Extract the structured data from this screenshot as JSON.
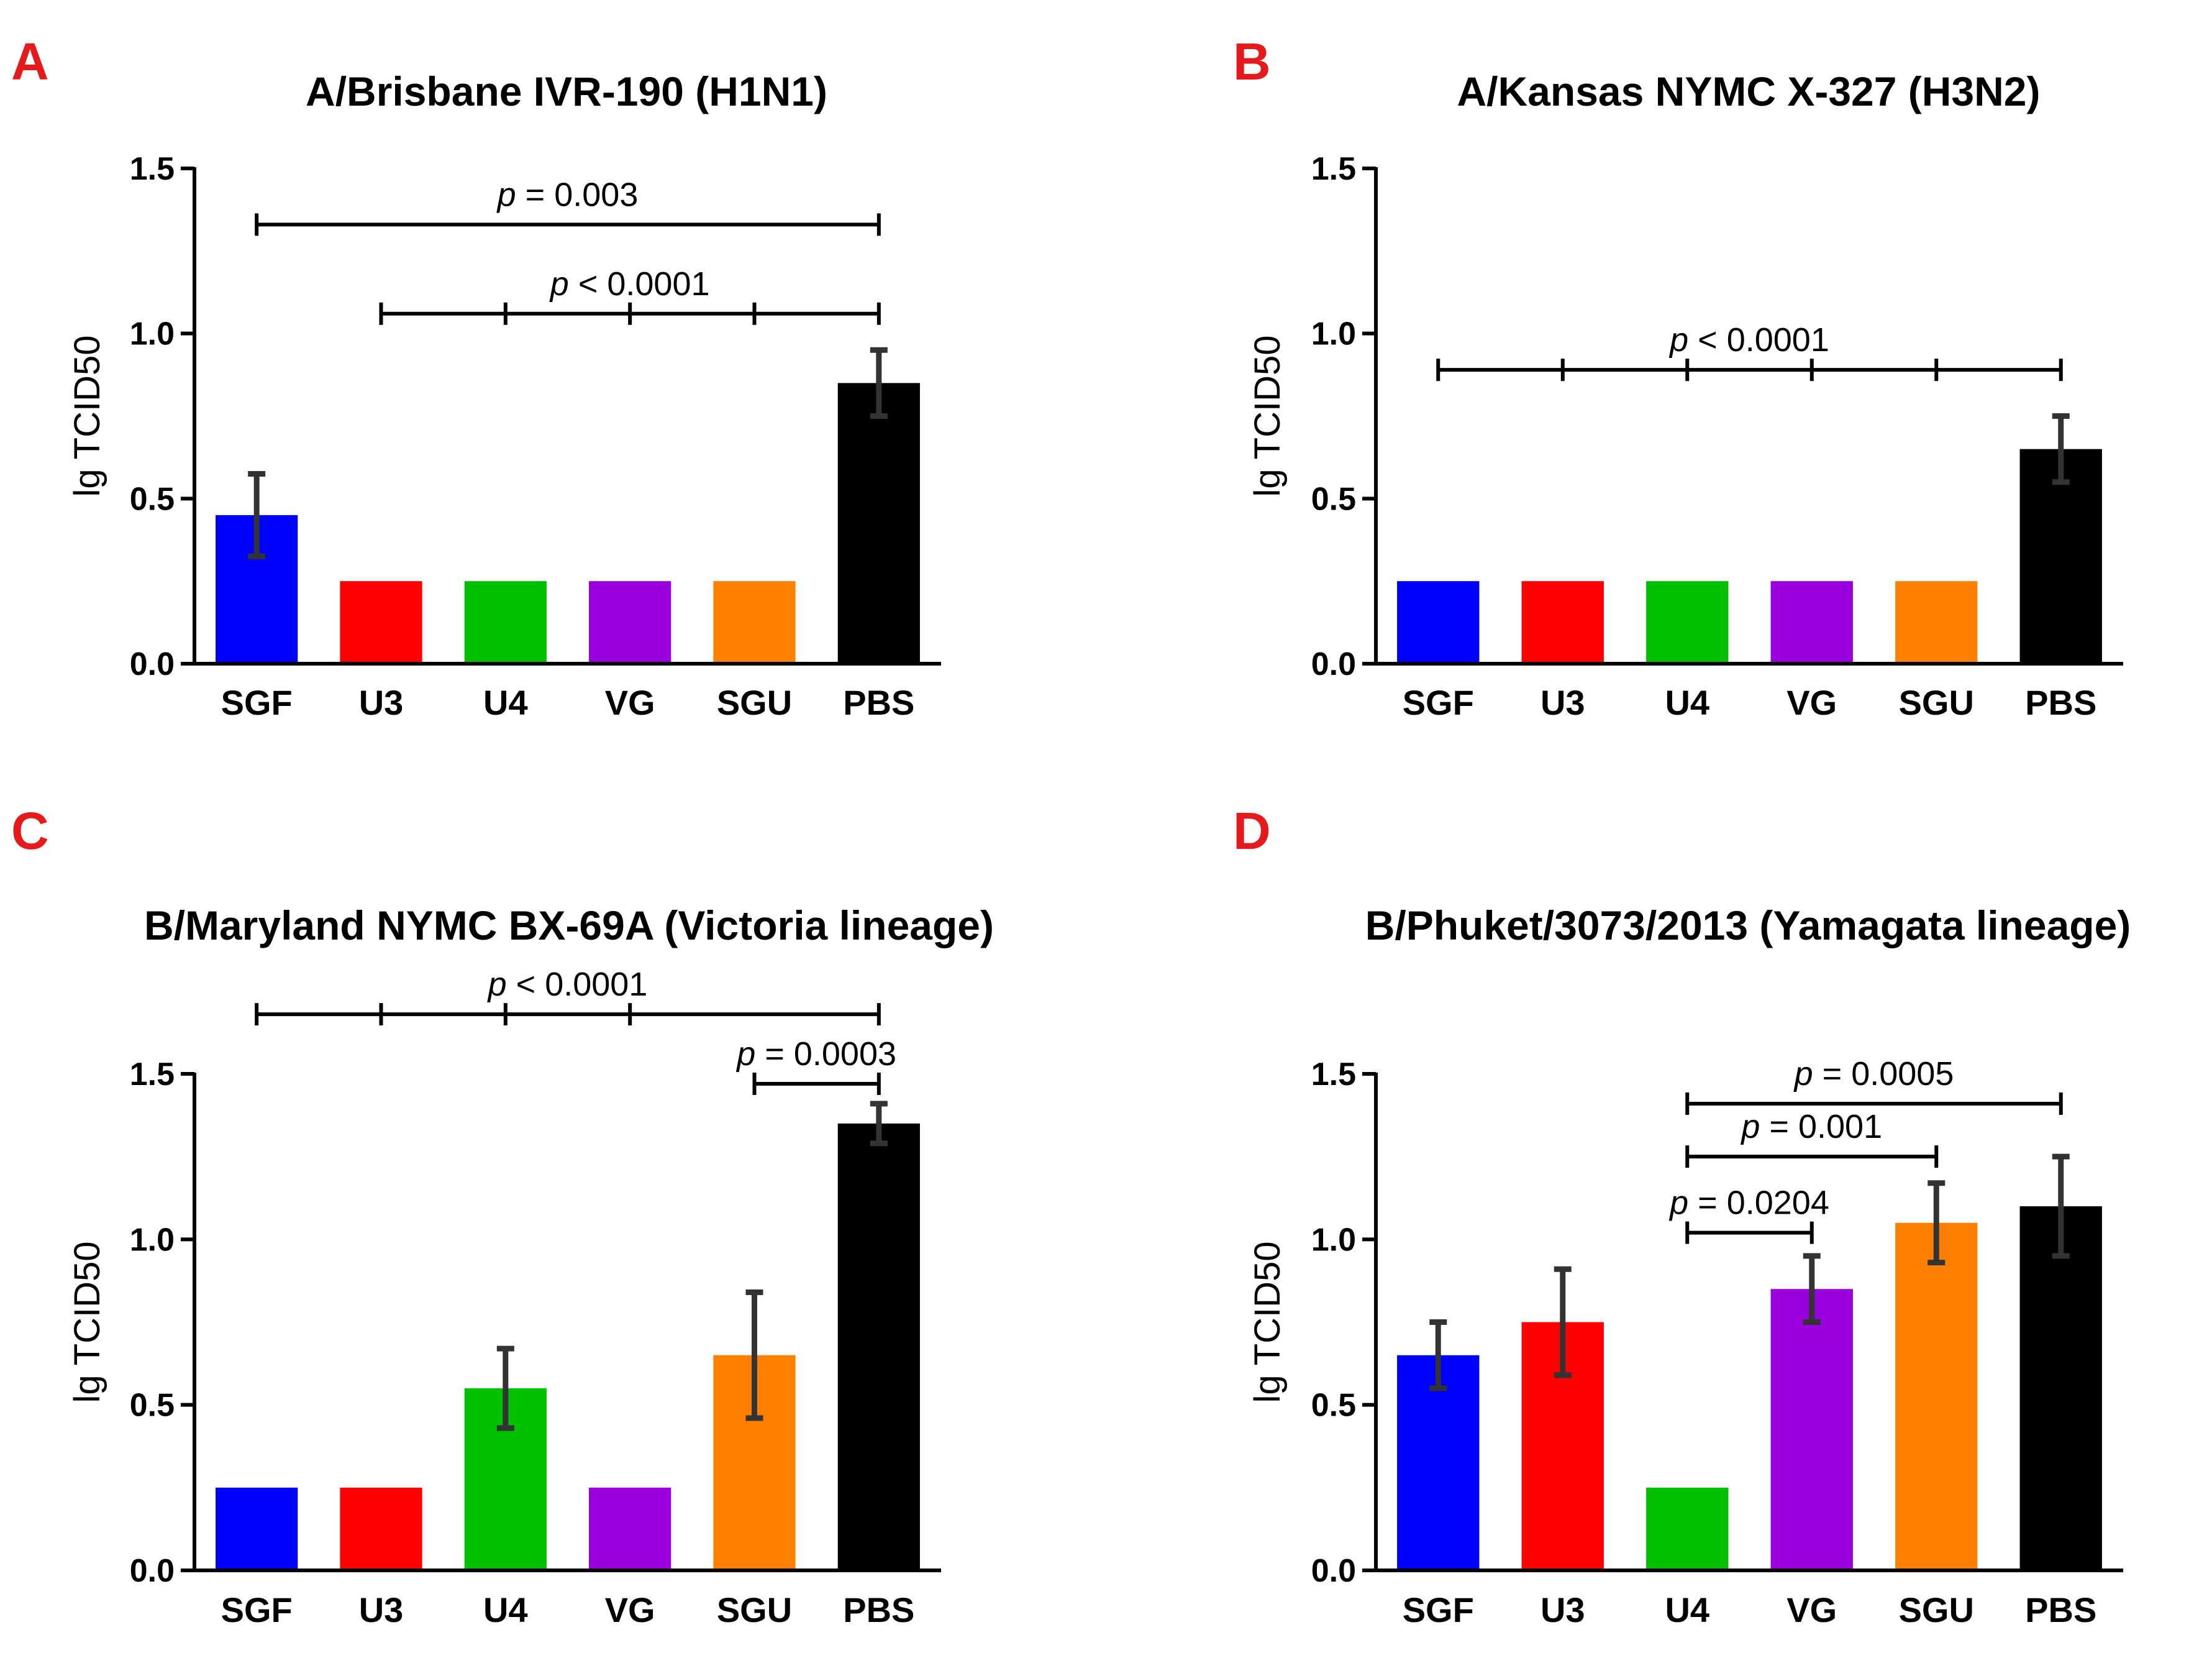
{
  "chart_data": [
    {
      "panel": "A",
      "type": "bar",
      "title": "A/Brisbane IVR-190 (H1N1)",
      "ylabel": "lg TCID50",
      "xlabel": "",
      "ylim": [
        0,
        1.5
      ],
      "yticks": [
        "0.0",
        "0.5",
        "1.0",
        "1.5"
      ],
      "categories": [
        "SGF",
        "U3",
        "U4",
        "VG",
        "SGU",
        "PBS"
      ],
      "values": [
        0.45,
        0.25,
        0.25,
        0.25,
        0.25,
        0.85
      ],
      "errors": [
        0.125,
        0,
        0,
        0,
        0,
        0.1
      ],
      "colors": [
        "#0000ff",
        "#ff0000",
        "#00c000",
        "#9900dd",
        "#ff8000",
        "#000000"
      ],
      "significance": [
        {
          "text_p": "p",
          "text_rest": " = 0.003",
          "value": 1.33,
          "from": 0,
          "to": 5,
          "ticks": [
            0,
            5
          ]
        },
        {
          "text_p": "p",
          "text_rest": " < 0.0001",
          "value": 1.06,
          "from": 1,
          "to": 5,
          "ticks": [
            1,
            2,
            3,
            4,
            5
          ]
        }
      ]
    },
    {
      "panel": "B",
      "type": "bar",
      "title": "A/Kansas NYMC X-327 (H3N2)",
      "ylabel": "lg TCID50",
      "xlabel": "",
      "ylim": [
        0,
        1.5
      ],
      "yticks": [
        "0.0",
        "0.5",
        "1.0",
        "1.5"
      ],
      "categories": [
        "SGF",
        "U3",
        "U4",
        "VG",
        "SGU",
        "PBS"
      ],
      "values": [
        0.25,
        0.25,
        0.25,
        0.25,
        0.25,
        0.65
      ],
      "errors": [
        0,
        0,
        0,
        0,
        0,
        0.1
      ],
      "colors": [
        "#0000ff",
        "#ff0000",
        "#00c000",
        "#9900dd",
        "#ff8000",
        "#000000"
      ],
      "significance": [
        {
          "text_p": "p",
          "text_rest": " < 0.0001",
          "value": 0.89,
          "from": 0,
          "to": 5,
          "ticks": [
            0,
            1,
            2,
            3,
            4,
            5
          ]
        }
      ]
    },
    {
      "panel": "C",
      "type": "bar",
      "title": "B/Maryland NYMC BX-69A (Victoria lineage)",
      "ylabel": "lg TCID50",
      "xlabel": "",
      "ylim": [
        0,
        1.5
      ],
      "yticks": [
        "0.0",
        "0.5",
        "1.0",
        "1.5"
      ],
      "categories": [
        "SGF",
        "U3",
        "U4",
        "VG",
        "SGU",
        "PBS"
      ],
      "values": [
        0.25,
        0.25,
        0.55,
        0.25,
        0.65,
        1.35
      ],
      "errors": [
        0,
        0,
        0.12,
        0,
        0.19,
        0.06
      ],
      "colors": [
        "#0000ff",
        "#ff0000",
        "#00c000",
        "#9900dd",
        "#ff8000",
        "#000000"
      ],
      "significance": [
        {
          "text_p": "p",
          "text_rest": " < 0.0001",
          "value": 1.68,
          "from": 0,
          "to": 5,
          "ticks": [
            0,
            1,
            2,
            3,
            5
          ]
        },
        {
          "text_p": "p",
          "text_rest": " = 0.0003",
          "value": 1.47,
          "from": 4,
          "to": 5,
          "ticks": [
            4,
            5
          ]
        }
      ]
    },
    {
      "panel": "D",
      "type": "bar",
      "title": "B/Phuket/3073/2013 (Yamagata lineage)",
      "ylabel": "lg TCID50",
      "xlabel": "",
      "ylim": [
        0,
        1.5
      ],
      "yticks": [
        "0.0",
        "0.5",
        "1.0",
        "1.5"
      ],
      "categories": [
        "SGF",
        "U3",
        "U4",
        "VG",
        "SGU",
        "PBS"
      ],
      "values": [
        0.65,
        0.75,
        0.25,
        0.85,
        1.05,
        1.1
      ],
      "errors": [
        0.1,
        0.16,
        0,
        0.1,
        0.12,
        0.15
      ],
      "colors": [
        "#0000ff",
        "#ff0000",
        "#00c000",
        "#9900dd",
        "#ff8000",
        "#000000"
      ],
      "significance": [
        {
          "text_p": "p",
          "text_rest": " = 0.0005",
          "value": 1.41,
          "from": 2,
          "to": 5,
          "ticks": [
            2,
            5
          ]
        },
        {
          "text_p": "p",
          "text_rest": " = 0.001",
          "value": 1.25,
          "from": 2,
          "to": 4,
          "ticks": [
            2,
            4
          ]
        },
        {
          "text_p": "p",
          "text_rest": " = 0.0204",
          "value": 1.02,
          "from": 2,
          "to": 3,
          "ticks": [
            2,
            3
          ]
        }
      ]
    }
  ]
}
